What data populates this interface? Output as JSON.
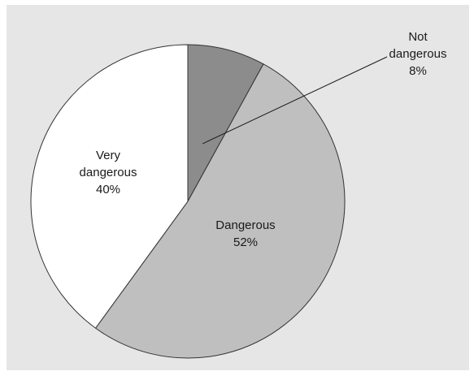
{
  "chart_data": {
    "type": "pie",
    "start_angle_deg": 0,
    "direction": "clockwise",
    "slices": [
      {
        "name_lines": [
          "Not",
          "dangerous"
        ],
        "value": 8,
        "value_label": "8%",
        "color": "#8c8c8c"
      },
      {
        "name_lines": [
          "Dangerous"
        ],
        "value": 52,
        "value_label": "52%",
        "color": "#bfbfbf"
      },
      {
        "name_lines": [
          "Very",
          "dangerous"
        ],
        "value": 40,
        "value_label": "40%",
        "color": "#ffffff"
      }
    ],
    "background": "#e6e6e6",
    "edge_color": "#333333"
  }
}
